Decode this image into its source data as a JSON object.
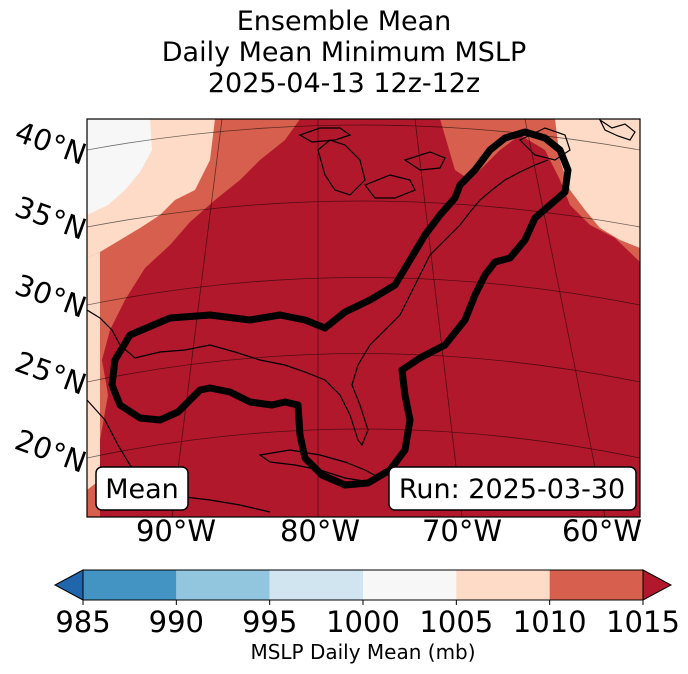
{
  "title": {
    "line1": "Ensemble Mean",
    "line2": "Daily Mean Minimum MSLP",
    "line3": "2025-04-13 12z-12z"
  },
  "map": {
    "lat_labels": [
      "40°N",
      "35°N",
      "30°N",
      "25°N",
      "20°N"
    ],
    "lon_labels": [
      "90°W",
      "80°W",
      "70°W",
      "60°W"
    ],
    "mean_label": "Mean",
    "run_label": "Run: 2025-03-30",
    "contour_color": "#000000",
    "colors": {
      "lt_1005_1010": "#fddbc7",
      "lt_1010_1015": "#d6604d",
      "gt_1015": "#b2182b",
      "lt_1000_1005": "#f7f7f7"
    }
  },
  "colorbar": {
    "ticks": [
      "985",
      "990",
      "995",
      "1000",
      "1005",
      "1010",
      "1015"
    ],
    "label": "MSLP Daily Mean (mb)",
    "segments": [
      {
        "range": "<985",
        "color": "#2166ac"
      },
      {
        "range": "985-990",
        "color": "#4393c3"
      },
      {
        "range": "990-995",
        "color": "#92c5de"
      },
      {
        "range": "995-1000",
        "color": "#d1e5f0"
      },
      {
        "range": "1000-1005",
        "color": "#f7f7f7"
      },
      {
        "range": "1005-1010",
        "color": "#fddbc7"
      },
      {
        "range": "1010-1015",
        "color": "#d6604d"
      },
      {
        "range": ">1015",
        "color": "#b2182b"
      }
    ]
  }
}
